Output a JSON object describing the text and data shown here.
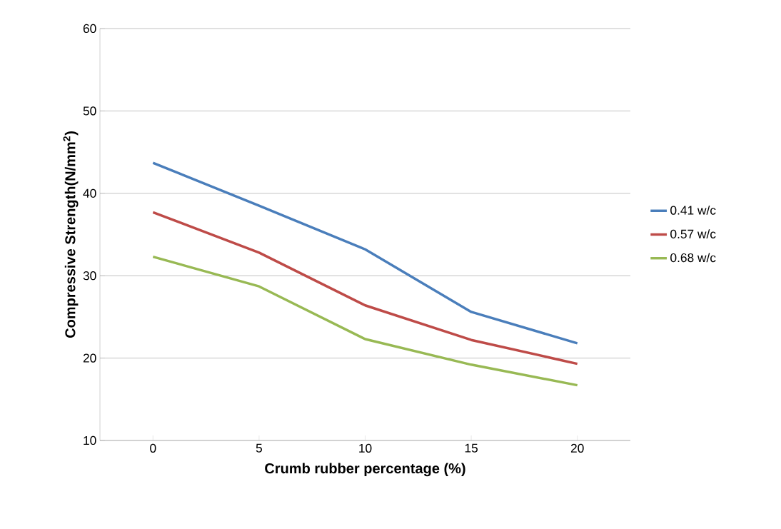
{
  "chart_data": {
    "type": "line",
    "xlabel": "Crumb rubber percentage (%)",
    "ylabel": "Compressive Strength(N/mm$^{2}$)",
    "categories": [
      "0",
      "5",
      "10",
      "15",
      "20"
    ],
    "series": [
      {
        "name": "0.41 w/c",
        "color": "#4a7ebb",
        "values": [
          43.7,
          38.5,
          33.2,
          25.6,
          21.8
        ]
      },
      {
        "name": "0.57 w/c",
        "color": "#be4b48",
        "values": [
          37.7,
          32.8,
          26.4,
          22.2,
          19.3
        ]
      },
      {
        "name": "0.68 w/c",
        "color": "#98b954",
        "values": [
          32.3,
          28.7,
          22.3,
          19.2,
          16.7
        ]
      }
    ],
    "ylim": [
      10,
      60
    ],
    "yticks": [
      10,
      20,
      30,
      40,
      50,
      60
    ],
    "grid": "y",
    "legend": "right",
    "marker": "none",
    "line_style": "solid"
  }
}
